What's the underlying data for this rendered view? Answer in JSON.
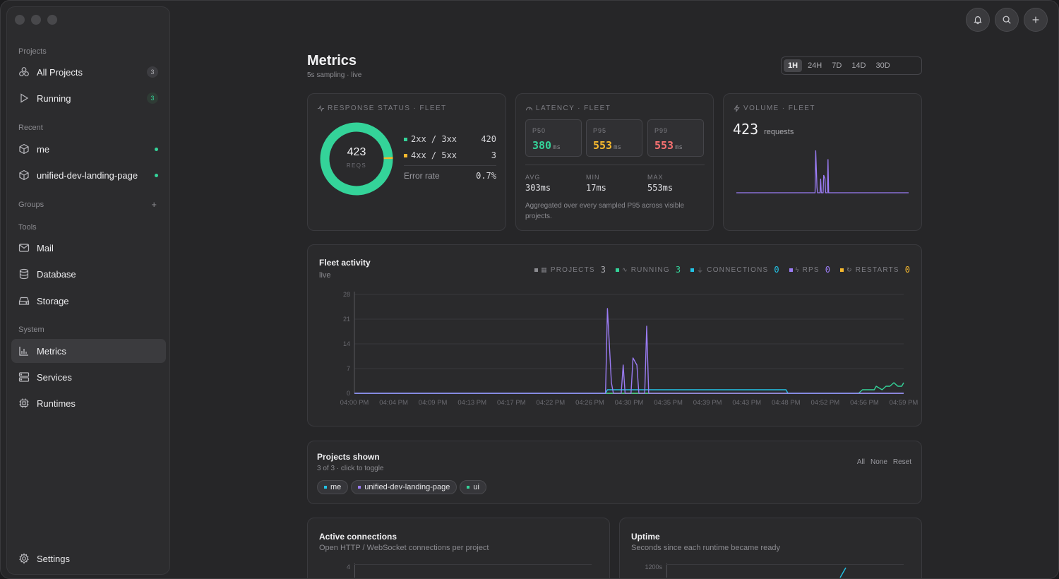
{
  "sidebar": {
    "sections": {
      "projects": "Projects",
      "recent": "Recent",
      "groups": "Groups",
      "tools": "Tools",
      "system": "System"
    },
    "projects": [
      {
        "label": "All Projects",
        "count": "3"
      },
      {
        "label": "Running",
        "count": "3"
      }
    ],
    "recent": [
      {
        "label": "me"
      },
      {
        "label": "unified-dev-landing-page"
      }
    ],
    "groups_add": "+",
    "tools": [
      {
        "label": "Mail",
        "icon": "mail-icon"
      },
      {
        "label": "Database",
        "icon": "database-icon"
      },
      {
        "label": "Storage",
        "icon": "storage-icon"
      }
    ],
    "system": [
      {
        "label": "Metrics",
        "icon": "bar-chart-icon",
        "active": true
      },
      {
        "label": "Services",
        "icon": "server-icon"
      },
      {
        "label": "Runtimes",
        "icon": "chip-icon"
      }
    ],
    "settings": "Settings"
  },
  "header": {
    "title": "Metrics",
    "subtitle": "5s sampling · live",
    "ranges": [
      "1H",
      "24H",
      "7D",
      "14D",
      "30D"
    ],
    "active_range": "1H"
  },
  "response_status": {
    "label": "RESPONSE STATUS · FLEET",
    "total": "423",
    "total_unit": "REQS",
    "rows": [
      {
        "label": "2xx / 3xx",
        "value": "420",
        "color": "#34d399"
      },
      {
        "label": "4xx / 5xx",
        "value": "3",
        "color": "#f5b82e"
      }
    ],
    "error_label": "Error rate",
    "error_value": "0.7%"
  },
  "latency": {
    "label": "LATENCY · FLEET",
    "percentiles": [
      {
        "label": "P50",
        "value": "380",
        "unit": "ms",
        "color": "#34d399"
      },
      {
        "label": "P95",
        "value": "553",
        "unit": "ms",
        "color": "#f5b82e"
      },
      {
        "label": "P99",
        "value": "553",
        "unit": "ms",
        "color": "#f87171"
      }
    ],
    "stats": [
      {
        "label": "AVG",
        "value": "303ms"
      },
      {
        "label": "MIN",
        "value": "17ms"
      },
      {
        "label": "MAX",
        "value": "553ms"
      }
    ],
    "note": "Aggregated over every sampled P95 across visible projects."
  },
  "volume": {
    "label": "VOLUME · FLEET",
    "value": "423",
    "unit": "requests"
  },
  "fleet": {
    "title": "Fleet activity",
    "subtitle": "live",
    "legend": [
      {
        "label": "PROJECTS",
        "value": "3",
        "color": "#8b8b90"
      },
      {
        "label": "RUNNING",
        "value": "3",
        "color": "#34d399"
      },
      {
        "label": "CONNECTIONS",
        "value": "0",
        "color": "#22c3e6"
      },
      {
        "label": "RPS",
        "value": "0",
        "color": "#9b7cf5"
      },
      {
        "label": "RESTARTS",
        "value": "0",
        "color": "#f5b82e"
      }
    ],
    "y_ticks": [
      "28",
      "21",
      "14",
      "7",
      "0"
    ],
    "x_ticks": [
      "04:00 PM",
      "04:04 PM",
      "04:09 PM",
      "04:13 PM",
      "04:17 PM",
      "04:22 PM",
      "04:26 PM",
      "04:30 PM",
      "04:35 PM",
      "04:39 PM",
      "04:43 PM",
      "04:48 PM",
      "04:52 PM",
      "04:56 PM",
      "04:59 PM"
    ]
  },
  "projects_shown": {
    "title": "Projects shown",
    "subtitle": "3 of 3 · click to toggle",
    "links": [
      "All",
      "None",
      "Reset"
    ],
    "chips": [
      {
        "label": "me",
        "color": "#22c3e6"
      },
      {
        "label": "unified-dev-landing-page",
        "color": "#9b7cf5"
      },
      {
        "label": "ui",
        "color": "#34d399"
      }
    ]
  },
  "active_connections": {
    "title": "Active connections",
    "subtitle": "Open HTTP / WebSocket connections per project",
    "y_top": "4"
  },
  "uptime": {
    "title": "Uptime",
    "subtitle": "Seconds since each runtime became ready",
    "y_top": "1200s"
  },
  "chart_data": {
    "type": "line",
    "ylim": [
      0,
      28
    ],
    "y_ticks": [
      0,
      7,
      14,
      21,
      28
    ],
    "categories": [
      "04:00 PM",
      "04:04 PM",
      "04:09 PM",
      "04:13 PM",
      "04:17 PM",
      "04:22 PM",
      "04:26 PM",
      "04:30 PM",
      "04:35 PM",
      "04:39 PM",
      "04:43 PM",
      "04:48 PM",
      "04:52 PM",
      "04:56 PM",
      "04:59 PM"
    ],
    "series": [
      {
        "name": "RPS",
        "color": "#9b7cf5",
        "points": [
          [
            0,
            0
          ],
          [
            6.4,
            0
          ],
          [
            6.45,
            24
          ],
          [
            6.55,
            3
          ],
          [
            6.6,
            0
          ],
          [
            6.8,
            0
          ],
          [
            6.85,
            8
          ],
          [
            6.9,
            0
          ],
          [
            7.05,
            0
          ],
          [
            7.1,
            10
          ],
          [
            7.2,
            8
          ],
          [
            7.25,
            0
          ],
          [
            7.4,
            0
          ],
          [
            7.45,
            19
          ],
          [
            7.5,
            0
          ],
          [
            14,
            0
          ]
        ]
      },
      {
        "name": "CONNECTIONS",
        "color": "#22c3e6",
        "points": [
          [
            0,
            0
          ],
          [
            6.4,
            0
          ],
          [
            6.45,
            1
          ],
          [
            11,
            1
          ],
          [
            11.05,
            0
          ],
          [
            14,
            0
          ]
        ]
      },
      {
        "name": "RUNNING",
        "color": "#34d399",
        "points": [
          [
            0,
            0
          ],
          [
            12.85,
            0
          ],
          [
            12.95,
            1
          ],
          [
            13.25,
            1
          ],
          [
            13.3,
            2
          ],
          [
            13.45,
            1
          ],
          [
            13.55,
            2
          ],
          [
            13.65,
            2
          ],
          [
            13.75,
            3
          ],
          [
            13.85,
            2
          ],
          [
            13.95,
            2
          ],
          [
            14,
            3
          ]
        ]
      },
      {
        "name": "RESTARTS",
        "color": "#f5b82e",
        "points": [
          [
            0,
            0
          ],
          [
            14,
            0
          ]
        ]
      }
    ]
  }
}
